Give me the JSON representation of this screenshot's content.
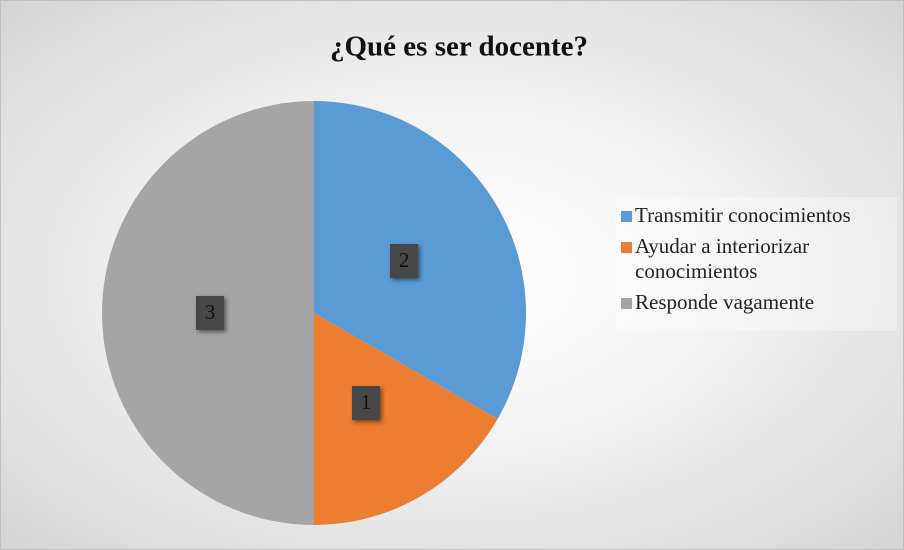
{
  "chart_data": {
    "type": "pie",
    "title": "¿Qué es ser docente?",
    "categories": [
      "Transmitir conocimientos",
      "Ayudar a interiorizar conocimientos",
      "Responde vagamente"
    ],
    "values": [
      2,
      1,
      3
    ],
    "colors": [
      "#5b9bd5",
      "#ed7d31",
      "#a5a5a5"
    ],
    "legend": "right"
  }
}
